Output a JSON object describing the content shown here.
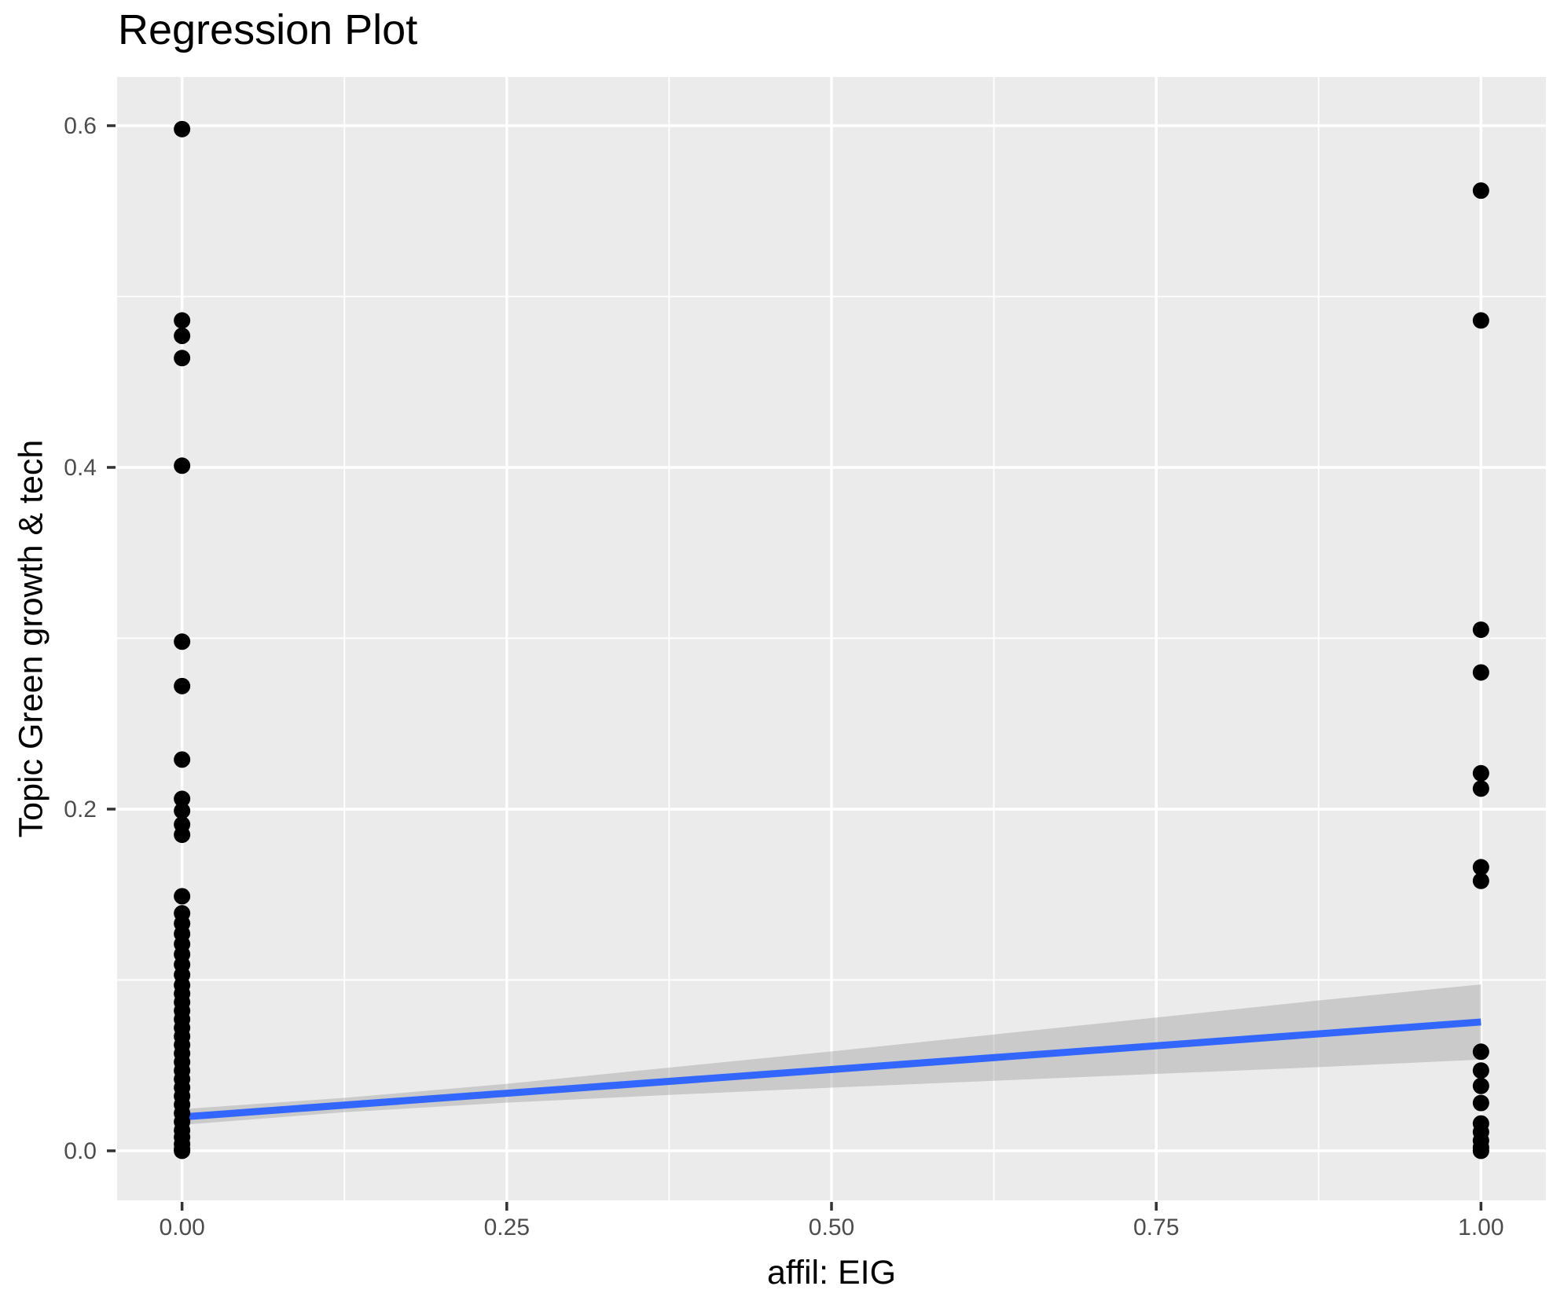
{
  "chart_data": {
    "type": "scatter",
    "title": "Regression Plot",
    "xlabel": "affil: EIG",
    "ylabel": "Topic Green growth & tech",
    "legend_position": "none",
    "grid": true,
    "xlim": [
      -0.05,
      1.05
    ],
    "ylim": [
      -0.029,
      0.6285
    ],
    "x_axis": {
      "ticks": [
        {
          "value": 0.0,
          "label": "0.00"
        },
        {
          "value": 0.25,
          "label": "0.25"
        },
        {
          "value": 0.5,
          "label": "0.50"
        },
        {
          "value": 0.75,
          "label": "0.75"
        },
        {
          "value": 1.0,
          "label": "1.00"
        }
      ],
      "minor_ticks": [
        0.125,
        0.375,
        0.625,
        0.875
      ]
    },
    "y_axis": {
      "ticks": [
        {
          "value": 0.0,
          "label": "0.0"
        },
        {
          "value": 0.2,
          "label": "0.2"
        },
        {
          "value": 0.4,
          "label": "0.4"
        },
        {
          "value": 0.6,
          "label": "0.6"
        }
      ],
      "minor_ticks": [
        0.1,
        0.3,
        0.5
      ]
    },
    "series": [
      {
        "name": "observations",
        "points": [
          [
            0,
            0.598
          ],
          [
            0,
            0.486
          ],
          [
            0,
            0.477
          ],
          [
            0,
            0.464
          ],
          [
            0,
            0.401
          ],
          [
            0,
            0.298
          ],
          [
            0,
            0.272
          ],
          [
            0,
            0.229
          ],
          [
            0,
            0.206
          ],
          [
            0,
            0.199
          ],
          [
            0,
            0.191
          ],
          [
            0,
            0.185
          ],
          [
            0,
            0.149
          ],
          [
            0,
            0.139
          ],
          [
            0,
            0.133
          ],
          [
            0,
            0.127
          ],
          [
            0,
            0.121
          ],
          [
            0,
            0.115
          ],
          [
            0,
            0.109
          ],
          [
            0,
            0.103
          ],
          [
            0,
            0.097
          ],
          [
            0,
            0.092
          ],
          [
            0,
            0.087
          ],
          [
            0,
            0.082
          ],
          [
            0,
            0.077
          ],
          [
            0,
            0.072
          ],
          [
            0,
            0.067
          ],
          [
            0,
            0.062
          ],
          [
            0,
            0.057
          ],
          [
            0,
            0.052
          ],
          [
            0,
            0.047
          ],
          [
            0,
            0.042
          ],
          [
            0,
            0.037
          ],
          [
            0,
            0.032
          ],
          [
            0,
            0.027
          ],
          [
            0,
            0.022
          ],
          [
            0,
            0.017
          ],
          [
            0,
            0.012
          ],
          [
            0,
            0.008
          ],
          [
            0,
            0.004
          ],
          [
            0,
            0.001
          ],
          [
            0,
            0.0
          ],
          [
            1,
            0.562
          ],
          [
            1,
            0.486
          ],
          [
            1,
            0.305
          ],
          [
            1,
            0.28
          ],
          [
            1,
            0.221
          ],
          [
            1,
            0.212
          ],
          [
            1,
            0.166
          ],
          [
            1,
            0.158
          ],
          [
            1,
            0.058
          ],
          [
            1,
            0.047
          ],
          [
            1,
            0.038
          ],
          [
            1,
            0.028
          ],
          [
            1,
            0.016
          ],
          [
            1,
            0.011
          ],
          [
            1,
            0.006
          ],
          [
            1,
            0.002
          ],
          [
            1,
            0.0
          ]
        ]
      }
    ],
    "regression_line": {
      "x": [
        0,
        1
      ],
      "y": [
        0.0198,
        0.0754
      ],
      "intercept": 0.0198,
      "slope": 0.0556
    },
    "ci_band": {
      "x": [
        0.0,
        0.125,
        0.25,
        0.375,
        0.5,
        0.625,
        0.75,
        0.875,
        1.0
      ],
      "upper": [
        0.0244,
        0.031,
        0.0392,
        0.0487,
        0.0582,
        0.0681,
        0.078,
        0.088,
        0.0974
      ],
      "lower": [
        0.0152,
        0.0226,
        0.0282,
        0.0327,
        0.037,
        0.041,
        0.045,
        0.049,
        0.0534
      ]
    },
    "colors": {
      "panel_background": "#EBEBEB",
      "gridline": "#FFFFFF",
      "point": "#000000",
      "regression_line": "#3366FF",
      "ci_band": "rgba(153,153,153,0.4)",
      "tick_mark": "#333333",
      "tick_label": "#4D4D4D",
      "title_text": "#000000"
    }
  }
}
